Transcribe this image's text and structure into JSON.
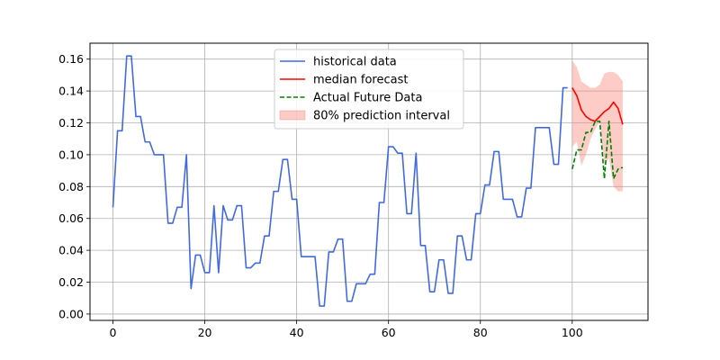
{
  "chart_data": {
    "type": "line",
    "title": "",
    "xlabel": "",
    "ylabel": "",
    "xlim": [
      -5,
      116.5
    ],
    "ylim": [
      -0.004,
      0.17
    ],
    "xticks": [
      0,
      20,
      40,
      60,
      80,
      100
    ],
    "yticks": [
      0.0,
      0.02,
      0.04,
      0.06,
      0.08,
      0.1,
      0.12,
      0.14,
      0.16
    ],
    "xtick_labels": [
      "0",
      "20",
      "40",
      "60",
      "80",
      "100"
    ],
    "ytick_labels": [
      "0.00",
      "0.02",
      "0.04",
      "0.06",
      "0.08",
      "0.10",
      "0.12",
      "0.14",
      "0.16"
    ],
    "grid": true,
    "legend_position": "upper center",
    "colors": {
      "historical": "#4169e1",
      "median": "#ff0000",
      "actual": "#008000",
      "interval_fill": "#fa8072"
    },
    "historical": {
      "name": "historical data",
      "x": [
        0,
        1,
        2,
        3,
        4,
        5,
        6,
        7,
        8,
        9,
        10,
        11,
        12,
        13,
        14,
        15,
        16,
        17,
        18,
        19,
        20,
        21,
        22,
        23,
        24,
        25,
        26,
        27,
        28,
        29,
        30,
        31,
        32,
        33,
        34,
        35,
        36,
        37,
        38,
        39,
        40,
        41,
        42,
        43,
        44,
        45,
        46,
        47,
        48,
        49,
        50,
        51,
        52,
        53,
        54,
        55,
        56,
        57,
        58,
        59,
        60,
        61,
        62,
        63,
        64,
        65,
        66,
        67,
        68,
        69,
        70,
        71,
        72,
        73,
        74,
        75,
        76,
        77,
        78,
        79,
        80,
        81,
        82,
        83,
        84,
        85,
        86,
        87,
        88,
        89,
        90,
        91,
        92,
        93,
        94,
        95,
        96,
        97,
        98,
        99
      ],
      "y": [
        0.067,
        0.115,
        0.115,
        0.162,
        0.162,
        0.124,
        0.124,
        0.108,
        0.108,
        0.1,
        0.1,
        0.1,
        0.057,
        0.057,
        0.067,
        0.067,
        0.1,
        0.016,
        0.037,
        0.037,
        0.026,
        0.026,
        0.068,
        0.026,
        0.068,
        0.059,
        0.059,
        0.068,
        0.068,
        0.029,
        0.029,
        0.032,
        0.032,
        0.049,
        0.049,
        0.077,
        0.077,
        0.097,
        0.097,
        0.072,
        0.072,
        0.036,
        0.036,
        0.036,
        0.036,
        0.005,
        0.005,
        0.039,
        0.039,
        0.047,
        0.047,
        0.008,
        0.008,
        0.019,
        0.019,
        0.019,
        0.025,
        0.025,
        0.07,
        0.07,
        0.105,
        0.105,
        0.101,
        0.101,
        0.063,
        0.063,
        0.101,
        0.043,
        0.043,
        0.014,
        0.014,
        0.034,
        0.034,
        0.013,
        0.013,
        0.049,
        0.049,
        0.034,
        0.034,
        0.063,
        0.063,
        0.081,
        0.081,
        0.102,
        0.102,
        0.072,
        0.072,
        0.072,
        0.061,
        0.061,
        0.079,
        0.079,
        0.117,
        0.117,
        0.117,
        0.117,
        0.094,
        0.094,
        0.142,
        0.142
      ]
    },
    "median": {
      "name": "median forecast",
      "x": [
        100,
        101,
        102,
        103,
        104,
        105,
        106,
        107,
        108,
        109,
        110,
        111
      ],
      "y": [
        0.142,
        0.137,
        0.128,
        0.124,
        0.122,
        0.121,
        0.124,
        0.127,
        0.129,
        0.133,
        0.129,
        0.119
      ]
    },
    "actual": {
      "name": "Actual Future Data",
      "x": [
        100,
        101,
        102,
        103,
        104,
        105,
        106,
        107,
        108,
        109,
        110,
        111
      ],
      "y": [
        0.091,
        0.103,
        0.103,
        0.114,
        0.114,
        0.121,
        0.121,
        0.085,
        0.121,
        0.085,
        0.091,
        0.092
      ]
    },
    "interval": {
      "name": "80% prediction interval",
      "x": [
        100,
        101,
        102,
        103,
        104,
        105,
        106,
        107,
        108,
        109,
        110,
        111
      ],
      "lower": [
        0.105,
        0.108,
        0.093,
        0.1,
        0.11,
        0.116,
        0.121,
        0.093,
        0.098,
        0.08,
        0.077,
        0.077
      ],
      "upper": [
        0.159,
        0.155,
        0.146,
        0.144,
        0.142,
        0.142,
        0.144,
        0.151,
        0.152,
        0.152,
        0.15,
        0.146
      ]
    },
    "legend": [
      {
        "label": "historical data",
        "style": "line",
        "color": "#4169e1"
      },
      {
        "label": "median forecast",
        "style": "line",
        "color": "#ff0000"
      },
      {
        "label": "Actual Future Data",
        "style": "dashed",
        "color": "#008000"
      },
      {
        "label": "80% prediction interval",
        "style": "patch",
        "color": "#fa8072"
      }
    ]
  }
}
